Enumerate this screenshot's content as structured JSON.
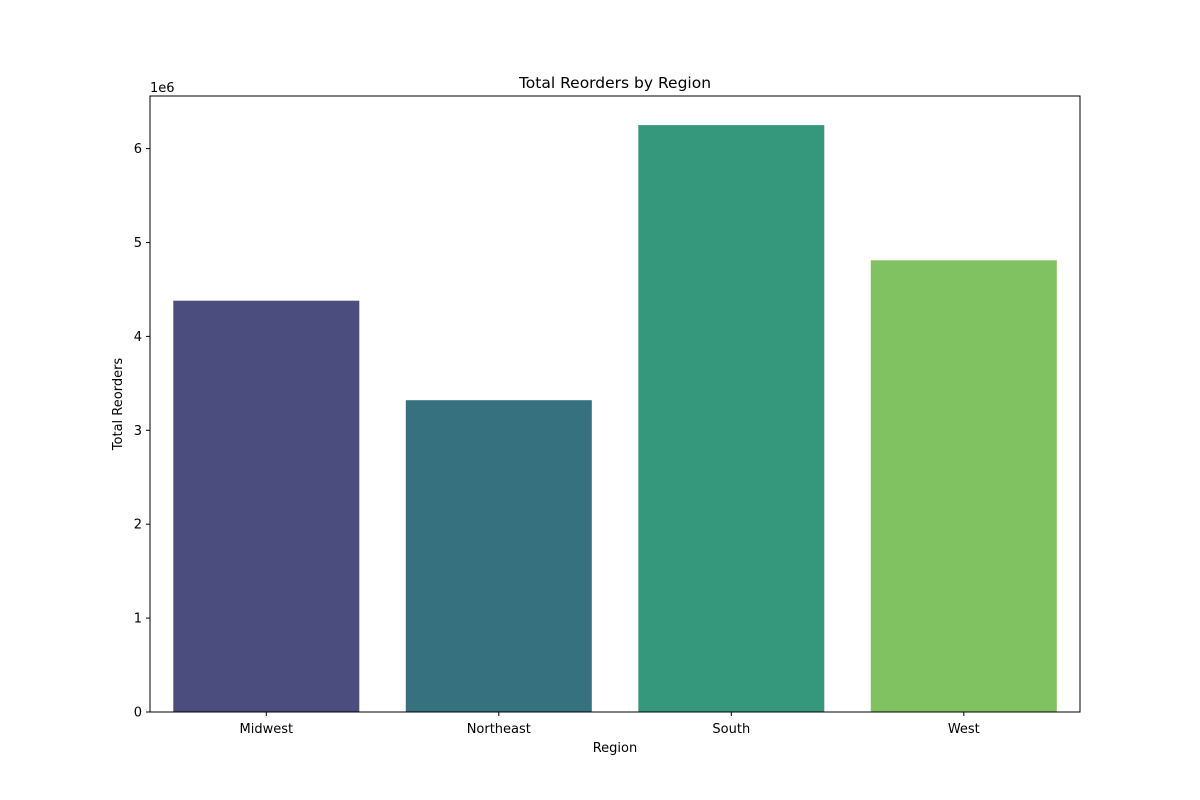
{
  "chart_data": {
    "type": "bar",
    "title": "Total Reorders by Region",
    "xlabel": "Region",
    "ylabel": "Total Reorders",
    "y_offset_label": "1e6",
    "y_scale_factor": 1000000,
    "categories": [
      "Midwest",
      "Northeast",
      "South",
      "West"
    ],
    "values": [
      4380000,
      3320000,
      6250000,
      4810000
    ],
    "colors": [
      "#4a4d7d",
      "#367180",
      "#35987d",
      "#80c262"
    ],
    "ylim": [
      0,
      6560000
    ],
    "yticks": [
      0,
      1000000,
      2000000,
      3000000,
      4000000,
      5000000,
      6000000
    ],
    "ytick_labels": [
      "0",
      "1",
      "2",
      "3",
      "4",
      "5",
      "6"
    ],
    "grid": false,
    "legend": "none"
  }
}
